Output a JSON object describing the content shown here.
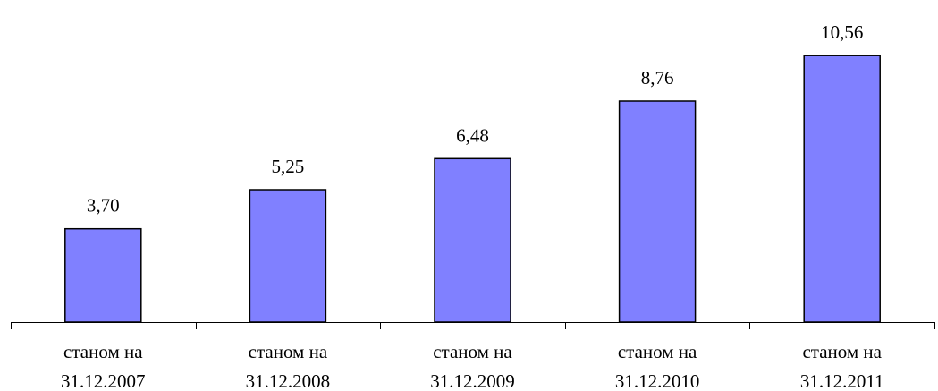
{
  "chart_data": {
    "type": "bar",
    "categories": [
      [
        "станом на",
        "31.12.2007"
      ],
      [
        "станом на",
        "31.12.2008"
      ],
      [
        "станом на",
        "31.12.2009"
      ],
      [
        "станом на",
        "31.12.2010"
      ],
      [
        "станом на",
        "31.12.2011"
      ]
    ],
    "values": [
      3.7,
      5.25,
      6.48,
      8.76,
      10.56
    ],
    "value_labels": [
      "3,70",
      "5,25",
      "6,48",
      "8,76",
      "10,56"
    ],
    "title": "",
    "xlabel": "",
    "ylabel": "",
    "ylim": [
      0,
      12
    ],
    "grid": false,
    "legend": "none",
    "colors": {
      "bar_fill": "#8080ff",
      "bar_stroke": "#000000",
      "axis": "#000000",
      "text": "#000000"
    }
  }
}
